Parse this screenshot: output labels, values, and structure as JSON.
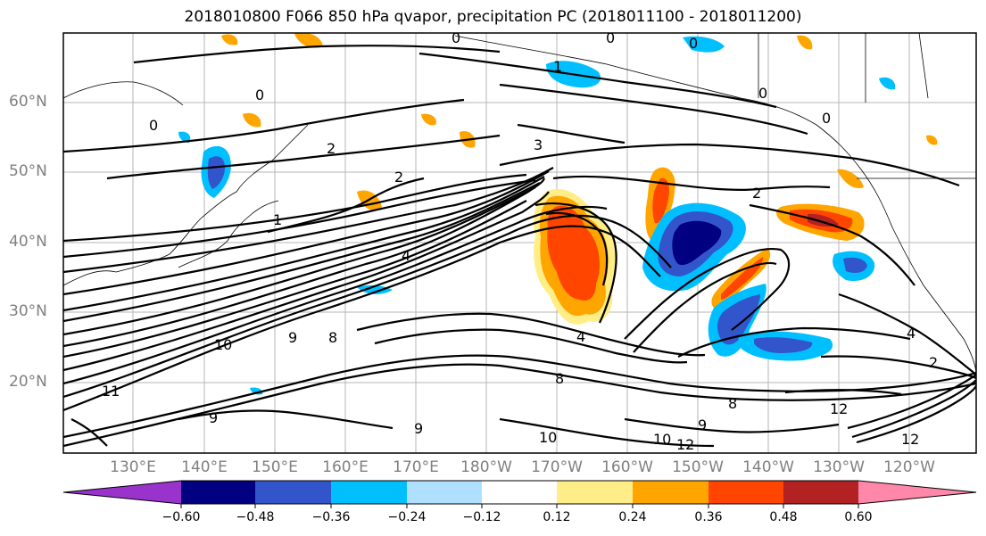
{
  "title": "2018010800 F066 850 hPa qvapor, precipitation PC (2018011100 - 2018011200)",
  "map": {
    "lat_labels": [
      "60°N",
      "50°N",
      "40°N",
      "30°N",
      "20°N"
    ],
    "lon_labels": [
      "130°E",
      "140°E",
      "150°E",
      "160°E",
      "170°E",
      "180°W",
      "170°W",
      "160°W",
      "150°W",
      "140°W",
      "130°W",
      "120°W"
    ],
    "contour_labels": [
      "0",
      "0",
      "0",
      "0",
      "0",
      "0",
      "0",
      "1",
      "1",
      "2",
      "2",
      "3",
      "4",
      "4",
      "4",
      "8",
      "8",
      "9",
      "9",
      "9",
      "10",
      "10",
      "10",
      "11",
      "12",
      "12",
      "2",
      "2",
      "8",
      "9",
      "12"
    ]
  },
  "colorbar": {
    "ticks": [
      "−0.60",
      "−0.48",
      "−0.36",
      "−0.24",
      "−0.12",
      "0.12",
      "0.24",
      "0.36",
      "0.48",
      "0.60"
    ],
    "colors": [
      "#9933cc",
      "#000080",
      "#3355cc",
      "#00bfff",
      "#b0e0ff",
      "#ffffff",
      "#ffee88",
      "#ffa500",
      "#ff4500",
      "#b22222",
      "#ff88aa"
    ]
  }
}
